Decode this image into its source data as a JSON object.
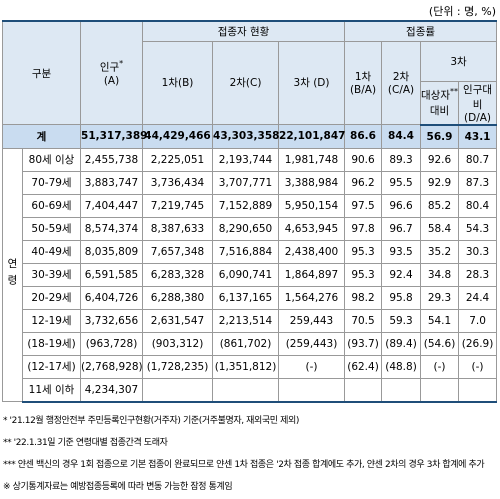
{
  "unit_note": "(단위 : 명, %)",
  "header": {
    "category": "구분",
    "population": "인구",
    "population_mark": "*",
    "population_code": "(A)",
    "vaccinated": "접종자 현황",
    "dose1": "1차(B)",
    "dose2": "2차(C)",
    "dose3": "3차 (D)",
    "rate": "접종률",
    "rate1": "1차",
    "rate1_code": "(B/A)",
    "rate2": "2차",
    "rate2_code": "(C/A)",
    "rate3": "3차",
    "rate3_target": "대상자",
    "rate3_target_mark": "**",
    "rate3_target_sub": "대비",
    "rate3_pop": "인구대비",
    "rate3_pop_code": "(D/A)"
  },
  "total": {
    "label": "계",
    "cells": [
      "51,317,389",
      "44,429,466",
      "43,303,358",
      "22,101,847",
      "86.6",
      "84.4",
      "56.9",
      "43.1"
    ]
  },
  "group_label": "연령",
  "rows": [
    {
      "label": "80세 이상",
      "cells": [
        "2,455,738",
        "2,225,051",
        "2,193,744",
        "1,981,748",
        "90.6",
        "89.3",
        "92.6",
        "80.7"
      ]
    },
    {
      "label": "70-79세",
      "cells": [
        "3,883,747",
        "3,736,434",
        "3,707,771",
        "3,388,984",
        "96.2",
        "95.5",
        "92.9",
        "87.3"
      ]
    },
    {
      "label": "60-69세",
      "cells": [
        "7,404,447",
        "7,219,745",
        "7,152,889",
        "5,950,154",
        "97.5",
        "96.6",
        "85.2",
        "80.4"
      ]
    },
    {
      "label": "50-59세",
      "cells": [
        "8,574,374",
        "8,387,633",
        "8,290,650",
        "4,653,945",
        "97.8",
        "96.7",
        "58.4",
        "54.3"
      ]
    },
    {
      "label": "40-49세",
      "cells": [
        "8,035,809",
        "7,657,348",
        "7,516,884",
        "2,438,400",
        "95.3",
        "93.5",
        "35.2",
        "30.3"
      ]
    },
    {
      "label": "30-39세",
      "cells": [
        "6,591,585",
        "6,283,328",
        "6,090,741",
        "1,864,897",
        "95.3",
        "92.4",
        "34.8",
        "28.3"
      ]
    },
    {
      "label": "20-29세",
      "cells": [
        "6,404,726",
        "6,288,380",
        "6,137,165",
        "1,564,276",
        "98.2",
        "95.8",
        "29.3",
        "24.4"
      ]
    },
    {
      "label": "12-19세",
      "cells": [
        "3,732,656",
        "2,631,547",
        "2,213,514",
        "259,443",
        "70.5",
        "59.3",
        "54.1",
        "7.0"
      ]
    },
    {
      "label": "(18-19세)",
      "cells": [
        "(963,728)",
        "(903,312)",
        "(861,702)",
        "(259,443)",
        "(93.7)",
        "(89.4)",
        "(54.6)",
        "(26.9)"
      ]
    },
    {
      "label": "(12-17세)",
      "cells": [
        "(2,768,928)",
        "(1,728,235)",
        "(1,351,812)",
        "(-)",
        "(62.4)",
        "(48.8)",
        "(-)",
        "(-)"
      ]
    },
    {
      "label": "11세 이하",
      "cells": [
        "4,234,307"
      ]
    }
  ],
  "footnotes": [
    "* '21.12월 행정안전부 주민등록인구현황(거주자) 기준(거주불명자, 재외국민 제외)",
    "** '22.1.31일 기준 연령대별 접종간격 도래자",
    "*** 얀센 백신의 경우 1회 접종으로 기본 접종이 완료되므로 얀센 1차 접종은 '2차 접종 합계에도 추가, 얀센 2차의 경우 3차 합계에 추가",
    "※ 상기통계자료는 예방접종등록에 따라 변동 가능한 잠정 통계임"
  ]
}
